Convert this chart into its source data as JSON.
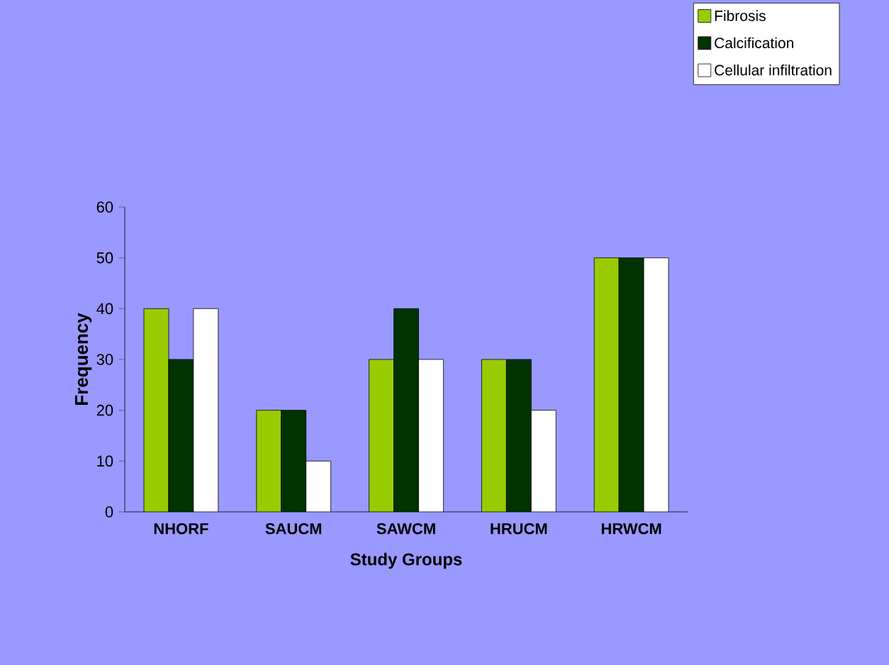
{
  "chart_data": {
    "type": "bar",
    "xlabel": "Study Groups",
    "ylabel": "Frequency",
    "categories": [
      "NHORF",
      "SAUCM",
      "SAWCM",
      "HRUCM",
      "HRWCM"
    ],
    "series": [
      {
        "name": "Fibrosis",
        "color": "#99cc00",
        "values": [
          40,
          20,
          30,
          30,
          50
        ]
      },
      {
        "name": "Calcification",
        "color": "#003300",
        "values": [
          30,
          20,
          40,
          30,
          50
        ]
      },
      {
        "name": "Cellular infiltration",
        "color": "#ffffff",
        "values": [
          40,
          10,
          30,
          20,
          50
        ]
      }
    ],
    "ylim": [
      0,
      60
    ],
    "yticks": [
      0,
      10,
      20,
      30,
      40,
      50,
      60
    ],
    "legend": "top right"
  }
}
